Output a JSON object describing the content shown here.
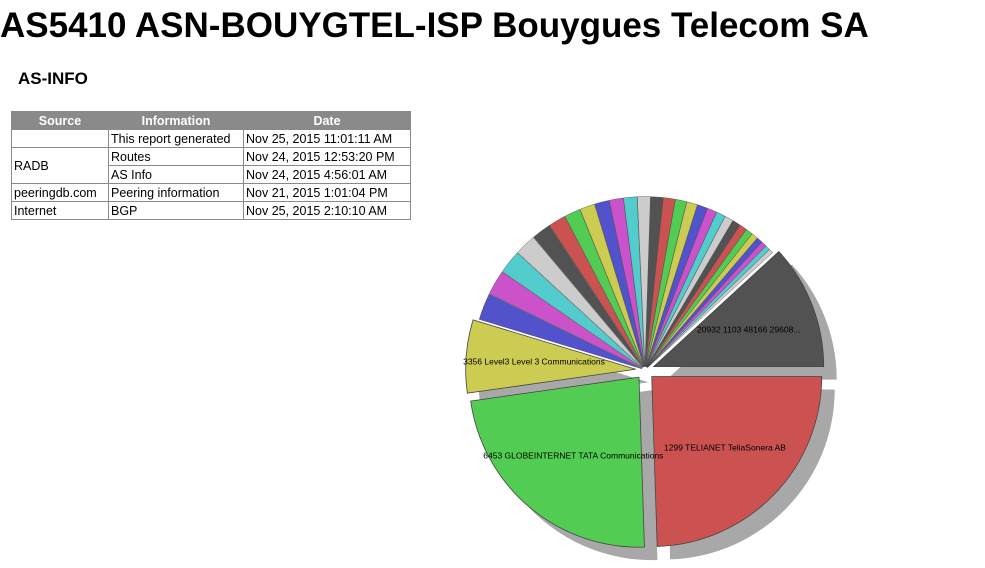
{
  "page": {
    "title": "AS5410 ASN-BOUYGTEL-ISP Bouygues Telecom SA"
  },
  "as_info": {
    "heading": "AS-INFO",
    "columns": [
      "Source",
      "Information",
      "Date"
    ],
    "rows": [
      {
        "source": "",
        "information": "This report generated",
        "date": "Nov 25, 2015 11:01:11 AM"
      },
      {
        "source": "RADB",
        "information": "Routes",
        "date": "Nov 24, 2015 12:53:20 PM"
      },
      {
        "source": "",
        "information": "AS Info",
        "date": "Nov 24, 2015 4:56:01 AM"
      },
      {
        "source": "peeringdb.com",
        "information": "Peering information",
        "date": "Nov 21, 2015 1:01:04 PM"
      },
      {
        "source": "Internet",
        "information": "BGP",
        "date": "Nov 25, 2015 2:10:10 AM"
      }
    ]
  },
  "chart_data": {
    "type": "pie",
    "title": "",
    "exploded": true,
    "shadow": true,
    "slices": [
      {
        "label": "1299 TELIANET TeliaSonera AB",
        "value": 24.0,
        "color": "#cc5252"
      },
      {
        "label": "6453 GLOBEINTERNET TATA Communications",
        "value": 22.8,
        "color": "#52cc52"
      },
      {
        "label": "3356 Level3 Level 3 Communications",
        "value": 6.8,
        "color": "#cccc52"
      },
      {
        "label": "",
        "value": 2.5,
        "color": "#5252cc"
      },
      {
        "label": "",
        "value": 2.3,
        "color": "#cc52cc"
      },
      {
        "label": "",
        "value": 2.2,
        "color": "#52cccc"
      },
      {
        "label": "",
        "value": 2.0,
        "color": "#cccccc"
      },
      {
        "label": "",
        "value": 1.8,
        "color": "#525252"
      },
      {
        "label": "",
        "value": 1.6,
        "color": "#cc5252"
      },
      {
        "label": "",
        "value": 1.5,
        "color": "#52cc52"
      },
      {
        "label": "",
        "value": 1.4,
        "color": "#cccc52"
      },
      {
        "label": "",
        "value": 1.35,
        "color": "#5252cc"
      },
      {
        "label": "",
        "value": 1.3,
        "color": "#cc52cc"
      },
      {
        "label": "",
        "value": 1.25,
        "color": "#52cccc"
      },
      {
        "label": "",
        "value": 1.2,
        "color": "#cccccc"
      },
      {
        "label": "",
        "value": 1.15,
        "color": "#525252"
      },
      {
        "label": "",
        "value": 1.1,
        "color": "#cc5252"
      },
      {
        "label": "",
        "value": 1.05,
        "color": "#52cc52"
      },
      {
        "label": "",
        "value": 1.0,
        "color": "#cccc52"
      },
      {
        "label": "",
        "value": 0.95,
        "color": "#5252cc"
      },
      {
        "label": "",
        "value": 0.9,
        "color": "#cc52cc"
      },
      {
        "label": "",
        "value": 0.85,
        "color": "#52cccc"
      },
      {
        "label": "",
        "value": 0.8,
        "color": "#cccccc"
      },
      {
        "label": "",
        "value": 0.75,
        "color": "#525252"
      },
      {
        "label": "",
        "value": 0.7,
        "color": "#cc5252"
      },
      {
        "label": "",
        "value": 0.65,
        "color": "#52cc52"
      },
      {
        "label": "",
        "value": 0.6,
        "color": "#cccc52"
      },
      {
        "label": "",
        "value": 0.55,
        "color": "#5252cc"
      },
      {
        "label": "",
        "value": 0.5,
        "color": "#cc52cc"
      },
      {
        "label": "",
        "value": 0.45,
        "color": "#52cccc"
      },
      {
        "label": "",
        "value": 0.4,
        "color": "#cccccc"
      },
      {
        "label": "20932 1103 48166 29608...",
        "value": 11.6,
        "color": "#525252"
      }
    ]
  }
}
